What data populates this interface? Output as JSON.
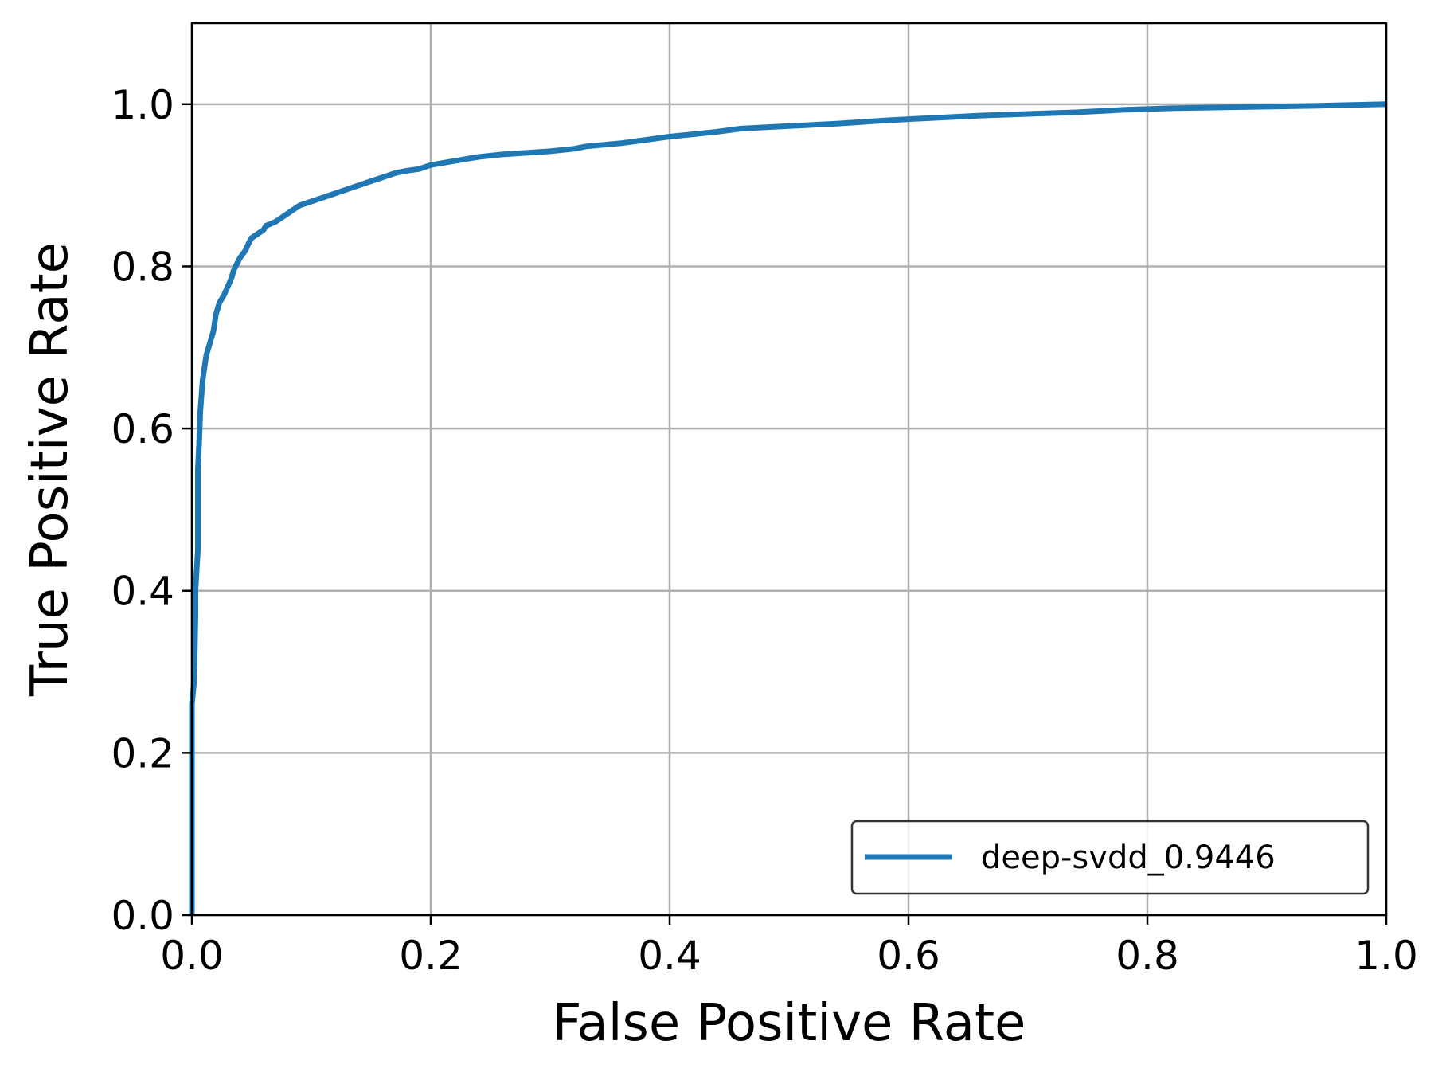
{
  "chart_data": {
    "type": "line",
    "title": "",
    "xlabel": "False Positive Rate",
    "ylabel": "True Positive Rate",
    "xlim": [
      0,
      1.0
    ],
    "ylim": [
      0,
      1.1
    ],
    "x_ticks": [
      0.0,
      0.2,
      0.4,
      0.6,
      0.8,
      1.0
    ],
    "x_tick_labels": [
      "0.0",
      "0.2",
      "0.4",
      "0.6",
      "0.8",
      "1.0"
    ],
    "y_ticks": [
      0.0,
      0.2,
      0.4,
      0.6,
      0.8,
      1.0
    ],
    "y_tick_labels": [
      "0.0",
      "0.2",
      "0.4",
      "0.6",
      "0.8",
      "1.0"
    ],
    "grid": true,
    "legend_position": "lower-right",
    "series": [
      {
        "name": "deep-svdd_0.9446",
        "color": "#1f77b4",
        "x": [
          0.0,
          0.0,
          0.002,
          0.003,
          0.003,
          0.005,
          0.005,
          0.006,
          0.007,
          0.008,
          0.009,
          0.01,
          0.011,
          0.012,
          0.014,
          0.016,
          0.018,
          0.019,
          0.02,
          0.021,
          0.023,
          0.025,
          0.027,
          0.03,
          0.033,
          0.035,
          0.04,
          0.045,
          0.048,
          0.05,
          0.055,
          0.06,
          0.062,
          0.07,
          0.08,
          0.09,
          0.1,
          0.11,
          0.12,
          0.13,
          0.14,
          0.15,
          0.16,
          0.17,
          0.18,
          0.19,
          0.2,
          0.22,
          0.24,
          0.26,
          0.28,
          0.3,
          0.32,
          0.33,
          0.36,
          0.38,
          0.4,
          0.42,
          0.44,
          0.46,
          0.5,
          0.54,
          0.58,
          0.62,
          0.66,
          0.7,
          0.74,
          0.78,
          0.82,
          0.86,
          0.9,
          0.94,
          1.0
        ],
        "y": [
          0.0,
          0.26,
          0.29,
          0.37,
          0.4,
          0.45,
          0.55,
          0.58,
          0.62,
          0.64,
          0.66,
          0.67,
          0.68,
          0.69,
          0.7,
          0.71,
          0.72,
          0.73,
          0.74,
          0.745,
          0.755,
          0.76,
          0.765,
          0.775,
          0.785,
          0.795,
          0.81,
          0.82,
          0.83,
          0.835,
          0.84,
          0.845,
          0.85,
          0.855,
          0.865,
          0.875,
          0.88,
          0.885,
          0.89,
          0.895,
          0.9,
          0.905,
          0.91,
          0.915,
          0.918,
          0.92,
          0.925,
          0.93,
          0.935,
          0.938,
          0.94,
          0.942,
          0.945,
          0.948,
          0.952,
          0.956,
          0.96,
          0.963,
          0.966,
          0.97,
          0.973,
          0.976,
          0.98,
          0.983,
          0.986,
          0.988,
          0.99,
          0.993,
          0.995,
          0.996,
          0.997,
          0.998,
          1.0
        ]
      }
    ]
  }
}
